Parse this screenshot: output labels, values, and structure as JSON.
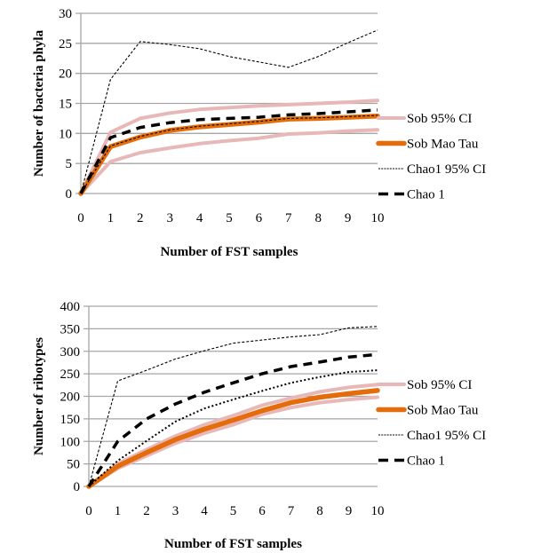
{
  "chart_data": [
    {
      "type": "line",
      "title": "",
      "xlabel": "Number of FST samples",
      "ylabel": "Number of bacteria phyla",
      "x": [
        0,
        1,
        2,
        3,
        4,
        5,
        6,
        7,
        8,
        9,
        10
      ],
      "xticks": [
        "0",
        "1",
        "2",
        "3",
        "4",
        "5",
        "6",
        "7",
        "8",
        "9",
        "10"
      ],
      "ylim": [
        0,
        30
      ],
      "yticks": [
        "0",
        "5",
        "10",
        "15",
        "20",
        "25",
        "30"
      ],
      "ytick_values": [
        0,
        5,
        10,
        15,
        20,
        25,
        30
      ],
      "grid": true,
      "legend_position": "right",
      "series": [
        {
          "name": "Sob 95% CI upper",
          "legend": "Sob 95% CI",
          "style": "sob-ci",
          "values": [
            0,
            10.2,
            12.5,
            13.4,
            14.0,
            14.3,
            14.6,
            14.8,
            15.0,
            15.2,
            15.5
          ]
        },
        {
          "name": "Sob 95% CI lower",
          "legend": "",
          "style": "sob-ci",
          "values": [
            0,
            5.3,
            6.8,
            7.6,
            8.3,
            8.8,
            9.2,
            9.9,
            10.1,
            10.4,
            10.6
          ]
        },
        {
          "name": "Sob Mao Tau",
          "legend": "Sob Mao Tau",
          "style": "sob",
          "values": [
            0,
            7.8,
            9.4,
            10.5,
            11.1,
            11.5,
            11.9,
            12.4,
            12.5,
            12.7,
            12.9
          ]
        },
        {
          "name": "Chao1 95% CI upper",
          "legend": "Chao1 95% CI",
          "style": "chao-ci",
          "values": [
            0,
            19.0,
            25.3,
            24.8,
            24.1,
            22.8,
            21.9,
            21.0,
            22.8,
            25.1,
            27.2
          ]
        },
        {
          "name": "Chao1 95% CI lower",
          "legend": "",
          "style": "chao-ci",
          "values": [
            0,
            7.9,
            9.5,
            10.6,
            11.2,
            11.6,
            12.0,
            12.5,
            12.6,
            12.8,
            13.0
          ]
        },
        {
          "name": "Chao 1",
          "legend": "Chao 1",
          "style": "chao",
          "values": [
            0,
            9.3,
            11.0,
            11.8,
            12.3,
            12.5,
            12.7,
            13.1,
            13.3,
            13.6,
            13.9
          ]
        }
      ]
    },
    {
      "type": "line",
      "title": "",
      "xlabel": "Number of FST samples",
      "ylabel": "Number of  ribotypes",
      "x": [
        0,
        1,
        2,
        3,
        4,
        5,
        6,
        7,
        8,
        9,
        10
      ],
      "xticks": [
        "0",
        "1",
        "2",
        "3",
        "4",
        "5",
        "6",
        "7",
        "8",
        "9",
        "10"
      ],
      "ylim": [
        0,
        400
      ],
      "yticks": [
        "0",
        "50",
        "100",
        "150",
        "200",
        "250",
        "300",
        "350",
        "400"
      ],
      "ytick_values": [
        0,
        50,
        100,
        150,
        200,
        250,
        300,
        350,
        400
      ],
      "grid": true,
      "legend_position": "right",
      "series": [
        {
          "name": "Sob 95% CI upper",
          "legend": "Sob 95% CI",
          "style": "sob-ci",
          "values": [
            0,
            50,
            82,
            112,
            137,
            157,
            180,
            196,
            210,
            220,
            226
          ]
        },
        {
          "name": "Sob 95% CI lower",
          "legend": "",
          "style": "sob-ci",
          "values": [
            0,
            40,
            68,
            96,
            118,
            137,
            160,
            175,
            186,
            193,
            198
          ]
        },
        {
          "name": "Sob Mao Tau",
          "legend": "Sob Mao Tau",
          "style": "sob",
          "values": [
            0,
            45,
            75,
            104,
            127,
            147,
            168,
            186,
            198,
            206,
            213
          ]
        },
        {
          "name": "Chao1 95% CI upper",
          "legend": "Chao1 95% CI",
          "style": "chao-ci",
          "values": [
            0,
            234,
            258,
            283,
            301,
            318,
            325,
            332,
            337,
            352,
            355
          ]
        },
        {
          "name": "Chao1 95% CI lower",
          "legend": "",
          "style": "chao-ci-dot",
          "values": [
            0,
            57,
            101,
            144,
            173,
            193,
            212,
            230,
            243,
            254,
            258
          ]
        },
        {
          "name": "Chao 1",
          "legend": "Chao 1",
          "style": "chao",
          "values": [
            0,
            100,
            150,
            183,
            209,
            230,
            250,
            266,
            276,
            287,
            293
          ]
        }
      ]
    }
  ],
  "colors": {
    "sob_ci": "#e8b8b8",
    "sob": "#e46c0a",
    "chao": "#000000",
    "grid": "#a6a6a6"
  }
}
